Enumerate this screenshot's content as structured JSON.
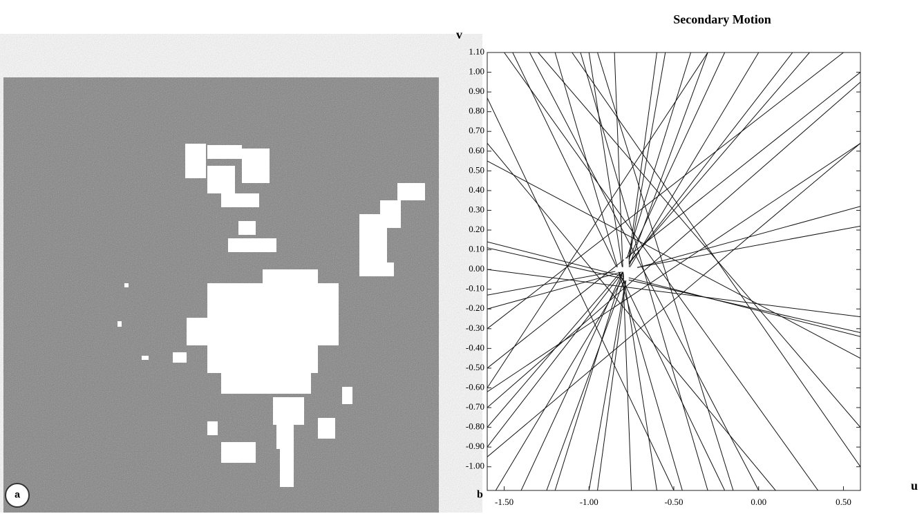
{
  "panel_a": {
    "label": "a"
  },
  "chart_data": {
    "type": "line",
    "title": "Secondary Motion",
    "panel_label": "b",
    "xlabel": "u",
    "ylabel": "v",
    "xlim": [
      -1.6,
      0.6
    ],
    "ylim": [
      -1.12,
      1.1
    ],
    "xticks": [
      {
        "value": -1.5,
        "label": "-1.50"
      },
      {
        "value": -1,
        "label": "-1.00"
      },
      {
        "value": -0.5,
        "label": "-0.50"
      },
      {
        "value": 0,
        "label": "0.00"
      },
      {
        "value": 0.5,
        "label": "0.50"
      }
    ],
    "yticks": [
      {
        "value": 1.1,
        "label": "1.10"
      },
      {
        "value": 1,
        "label": "1.00"
      },
      {
        "value": 0.9,
        "label": "0.90"
      },
      {
        "value": 0.8,
        "label": "0.80"
      },
      {
        "value": 0.7,
        "label": "0.70"
      },
      {
        "value": 0.6,
        "label": "0.60"
      },
      {
        "value": 0.5,
        "label": "0.50"
      },
      {
        "value": 0.4,
        "label": "0.40"
      },
      {
        "value": 0.3,
        "label": "0.30"
      },
      {
        "value": 0.2,
        "label": "0.20"
      },
      {
        "value": 0.1,
        "label": "0.10"
      },
      {
        "value": 0,
        "label": "0.00"
      },
      {
        "value": -0.1,
        "label": "-0.10"
      },
      {
        "value": -0.2,
        "label": "-0.20"
      },
      {
        "value": -0.3,
        "label": "-0.30"
      },
      {
        "value": -0.4,
        "label": "-0.40"
      },
      {
        "value": -0.5,
        "label": "-0.50"
      },
      {
        "value": -0.6,
        "label": "-0.60"
      },
      {
        "value": -0.7,
        "label": "-0.70"
      },
      {
        "value": -0.8,
        "label": "-0.80"
      },
      {
        "value": -0.9,
        "label": "-0.90"
      },
      {
        "value": -1,
        "label": "-1.00"
      }
    ],
    "color": "#111111",
    "estimate": {
      "x": -0.78,
      "y": 0.0
    },
    "lines": [
      {
        "x": [
          -1.6,
          -0.5
        ],
        "y": [
          0.87,
          -1.12
        ]
      },
      {
        "x": [
          -1.6,
          0.1
        ],
        "y": [
          0.64,
          -1.12
        ]
      },
      {
        "x": [
          -1.6,
          0.6
        ],
        "y": [
          0.14,
          -0.34
        ]
      },
      {
        "x": [
          -1.6,
          0.6
        ],
        "y": [
          0.11,
          -0.32
        ]
      },
      {
        "x": [
          -1.6,
          0.6
        ],
        "y": [
          0.0,
          -0.24
        ]
      },
      {
        "x": [
          -1.6,
          0.6
        ],
        "y": [
          -0.13,
          0.22
        ]
      },
      {
        "x": [
          -1.6,
          0.6
        ],
        "y": [
          -0.2,
          0.32
        ]
      },
      {
        "x": [
          -1.6,
          -0.3
        ],
        "y": [
          -0.6,
          1.1
        ]
      },
      {
        "x": [
          -1.6,
          0.3
        ],
        "y": [
          -0.8,
          1.1
        ]
      },
      {
        "x": [
          -1.6,
          0.6
        ],
        "y": [
          -0.95,
          0.64
        ]
      },
      {
        "x": [
          -1.6,
          0.6
        ],
        "y": [
          -0.7,
          0.95
        ]
      },
      {
        "x": [
          -1.45,
          -0.2
        ],
        "y": [
          1.1,
          -1.12
        ]
      },
      {
        "x": [
          -1.35,
          0.0
        ],
        "y": [
          1.1,
          -1.12
        ]
      },
      {
        "x": [
          -1.2,
          -0.45
        ],
        "y": [
          1.1,
          -1.12
        ]
      },
      {
        "x": [
          -1.0,
          -0.6
        ],
        "y": [
          1.1,
          -1.12
        ]
      },
      {
        "x": [
          -0.85,
          -0.75
        ],
        "y": [
          1.1,
          -1.12
        ]
      },
      {
        "x": [
          -0.6,
          -0.95
        ],
        "y": [
          1.1,
          -1.12
        ]
      },
      {
        "x": [
          -0.4,
          -1.2
        ],
        "y": [
          1.1,
          -1.12
        ]
      },
      {
        "x": [
          -0.2,
          -1.4
        ],
        "y": [
          1.1,
          -1.12
        ]
      },
      {
        "x": [
          0.0,
          -1.55
        ],
        "y": [
          1.1,
          -1.12
        ]
      },
      {
        "x": [
          0.2,
          -1.6
        ],
        "y": [
          1.1,
          -0.9
        ]
      },
      {
        "x": [
          0.6,
          -1.6
        ],
        "y": [
          1.0,
          -0.5
        ]
      },
      {
        "x": [
          0.6,
          -1.6
        ],
        "y": [
          0.64,
          -0.62
        ]
      },
      {
        "x": [
          0.6,
          -1.3
        ],
        "y": [
          -0.8,
          1.1
        ]
      },
      {
        "x": [
          0.6,
          -1.6
        ],
        "y": [
          -0.45,
          0.55
        ]
      },
      {
        "x": [
          0.6,
          -1.1
        ],
        "y": [
          -1.0,
          1.1
        ]
      },
      {
        "x": [
          -0.3,
          -1.05
        ],
        "y": [
          -1.12,
          1.1
        ]
      },
      {
        "x": [
          0.35,
          -1.5
        ],
        "y": [
          -1.12,
          1.1
        ]
      },
      {
        "x": [
          -1.0,
          -0.55
        ],
        "y": [
          -1.12,
          1.1
        ]
      },
      {
        "x": [
          -1.25,
          -0.3
        ],
        "y": [
          -1.12,
          1.1
        ]
      },
      {
        "x": [
          0.5,
          -1.6
        ],
        "y": [
          1.1,
          -0.3
        ]
      },
      {
        "x": [
          -0.95,
          -0.15
        ],
        "y": [
          1.1,
          -1.12
        ]
      }
    ]
  }
}
